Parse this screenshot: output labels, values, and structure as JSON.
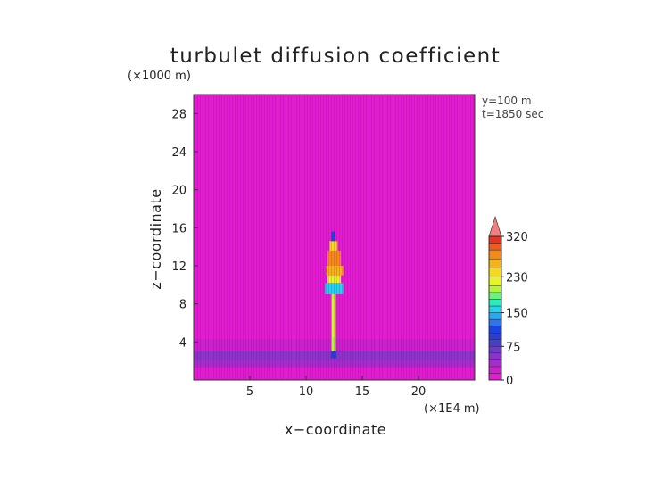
{
  "chart_data": {
    "type": "heatmap",
    "title": "turbulet diffusion coefficient",
    "xlabel": "x−coordinate",
    "ylabel": "z−coordinate",
    "x_unit": "(×1E4 m)",
    "y_unit": "(×1000 m)",
    "annotations": [
      "y=100 m",
      "t=1850 sec"
    ],
    "xlim": [
      0,
      25
    ],
    "ylim": [
      0,
      30
    ],
    "x_ticks": [
      5,
      10,
      15,
      20
    ],
    "y_ticks": [
      4,
      8,
      12,
      16,
      20,
      24,
      28
    ],
    "grid": false,
    "colorbar": {
      "placement": "right",
      "tick_values": [
        0,
        75,
        150,
        230,
        320
      ],
      "tick_labels": [
        "0",
        "75",
        "150",
        "230",
        "320"
      ],
      "levels": [
        {
          "value": 0,
          "color": "#e21cd0"
        },
        {
          "value": 15,
          "color": "#cc20cf"
        },
        {
          "value": 30,
          "color": "#a82ccd"
        },
        {
          "value": 45,
          "color": "#8a34cc"
        },
        {
          "value": 60,
          "color": "#6a3cca"
        },
        {
          "value": 75,
          "color": "#4a3ec8"
        },
        {
          "value": 90,
          "color": "#2c3ed0"
        },
        {
          "value": 105,
          "color": "#1a44e0"
        },
        {
          "value": 120,
          "color": "#2e74ec"
        },
        {
          "value": 135,
          "color": "#28a8ee"
        },
        {
          "value": 150,
          "color": "#22d2ee"
        },
        {
          "value": 165,
          "color": "#2ee8c0"
        },
        {
          "value": 180,
          "color": "#6ef27a"
        },
        {
          "value": 195,
          "color": "#b6f43a"
        },
        {
          "value": 210,
          "color": "#e8f42a"
        },
        {
          "value": 230,
          "color": "#f6d81e"
        },
        {
          "value": 250,
          "color": "#f6b21a"
        },
        {
          "value": 270,
          "color": "#f48a1c"
        },
        {
          "value": 290,
          "color": "#ee5c20"
        },
        {
          "value": 305,
          "color": "#e83224"
        }
      ],
      "over_color": "#f08080"
    },
    "background_value": 0,
    "field_regions": [
      {
        "x": [
          0,
          25
        ],
        "z": [
          3.0,
          4.3
        ],
        "value": 20
      },
      {
        "x": [
          0,
          25
        ],
        "z": [
          2.0,
          3.0
        ],
        "value": 55
      },
      {
        "x": [
          0,
          25
        ],
        "z": [
          1.3,
          2.0
        ],
        "value": 30
      },
      {
        "x": [
          12.2,
          12.7
        ],
        "z": [
          2.3,
          3.0
        ],
        "value": 100
      },
      {
        "x": [
          12.25,
          12.65
        ],
        "z": [
          3.0,
          9.0
        ],
        "value": 195
      },
      {
        "x": [
          12.35,
          12.55
        ],
        "z": [
          4.5,
          8.5
        ],
        "value": 215
      },
      {
        "x": [
          11.7,
          13.3
        ],
        "z": [
          9.0,
          10.2
        ],
        "value": 150
      },
      {
        "x": [
          11.9,
          13.1
        ],
        "z": [
          10.2,
          11.0
        ],
        "value": 210
      },
      {
        "x": [
          11.8,
          13.3
        ],
        "z": [
          11.0,
          12.0
        ],
        "value": 250
      },
      {
        "x": [
          11.9,
          13.1
        ],
        "z": [
          12.0,
          13.6
        ],
        "value": 275
      },
      {
        "x": [
          12.1,
          12.8
        ],
        "z": [
          13.6,
          14.6
        ],
        "value": 230
      },
      {
        "x": [
          12.25,
          12.6
        ],
        "z": [
          14.6,
          15.6
        ],
        "value": 110
      }
    ]
  }
}
